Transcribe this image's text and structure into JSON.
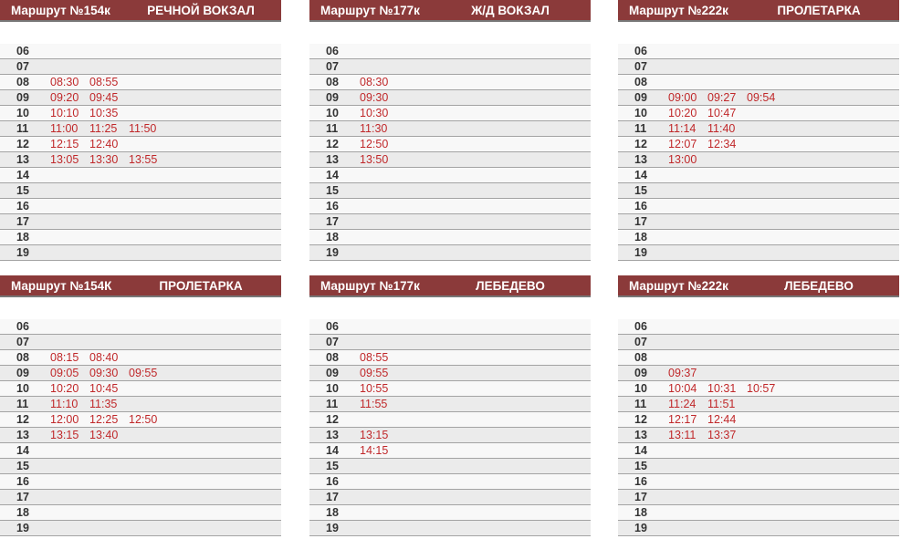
{
  "hours": [
    "06",
    "07",
    "08",
    "09",
    "10",
    "11",
    "12",
    "13",
    "14",
    "15",
    "16",
    "17",
    "18",
    "19"
  ],
  "colors": {
    "header_bg": "#8b3a3a",
    "time_text": "#c0282a"
  },
  "panels": [
    {
      "route": "Маршрут №154к",
      "destination": "РЕЧНОЙ ВОКЗАЛ",
      "times": {
        "08": [
          "08:30",
          "08:55"
        ],
        "09": [
          "09:20",
          "09:45"
        ],
        "10": [
          "10:10",
          "10:35"
        ],
        "11": [
          "11:00",
          "11:25",
          "11:50"
        ],
        "12": [
          "12:15",
          "12:40"
        ],
        "13": [
          "13:05",
          "13:30",
          "13:55"
        ]
      }
    },
    {
      "route": "Маршрут №177к",
      "destination": "Ж/Д ВОКЗАЛ",
      "times": {
        "08": [
          "08:30"
        ],
        "09": [
          "09:30"
        ],
        "10": [
          "10:30"
        ],
        "11": [
          "11:30"
        ],
        "12": [
          "12:50"
        ],
        "13": [
          "13:50"
        ]
      }
    },
    {
      "route": "Маршрут №222к",
      "destination": "ПРОЛЕТАРКА",
      "times": {
        "09": [
          "09:00",
          "09:27",
          "09:54"
        ],
        "10": [
          "10:20",
          "10:47"
        ],
        "11": [
          "11:14",
          "11:40"
        ],
        "12": [
          "12:07",
          "12:34"
        ],
        "13": [
          "13:00"
        ]
      }
    },
    {
      "route": "Маршрут №154К",
      "destination": "ПРОЛЕТАРКА",
      "times": {
        "08": [
          "08:15",
          "08:40"
        ],
        "09": [
          "09:05",
          "09:30",
          "09:55"
        ],
        "10": [
          "10:20",
          "10:45"
        ],
        "11": [
          "11:10",
          "11:35"
        ],
        "12": [
          "12:00",
          "12:25",
          "12:50"
        ],
        "13": [
          "13:15",
          "13:40"
        ]
      }
    },
    {
      "route": "Маршрут №177к",
      "destination": "ЛЕБЕДЕВО",
      "times": {
        "08": [
          "08:55"
        ],
        "09": [
          "09:55"
        ],
        "10": [
          "10:55"
        ],
        "11": [
          "11:55"
        ],
        "13": [
          "13:15"
        ],
        "14": [
          "14:15"
        ]
      }
    },
    {
      "route": "Маршрут №222к",
      "destination": "ЛЕБЕДЕВО",
      "times": {
        "09": [
          "09:37"
        ],
        "10": [
          "10:04",
          "10:31",
          "10:57"
        ],
        "11": [
          "11:24",
          "11:51"
        ],
        "12": [
          "12:17",
          "12:44"
        ],
        "13": [
          "13:11",
          "13:37"
        ]
      }
    }
  ]
}
